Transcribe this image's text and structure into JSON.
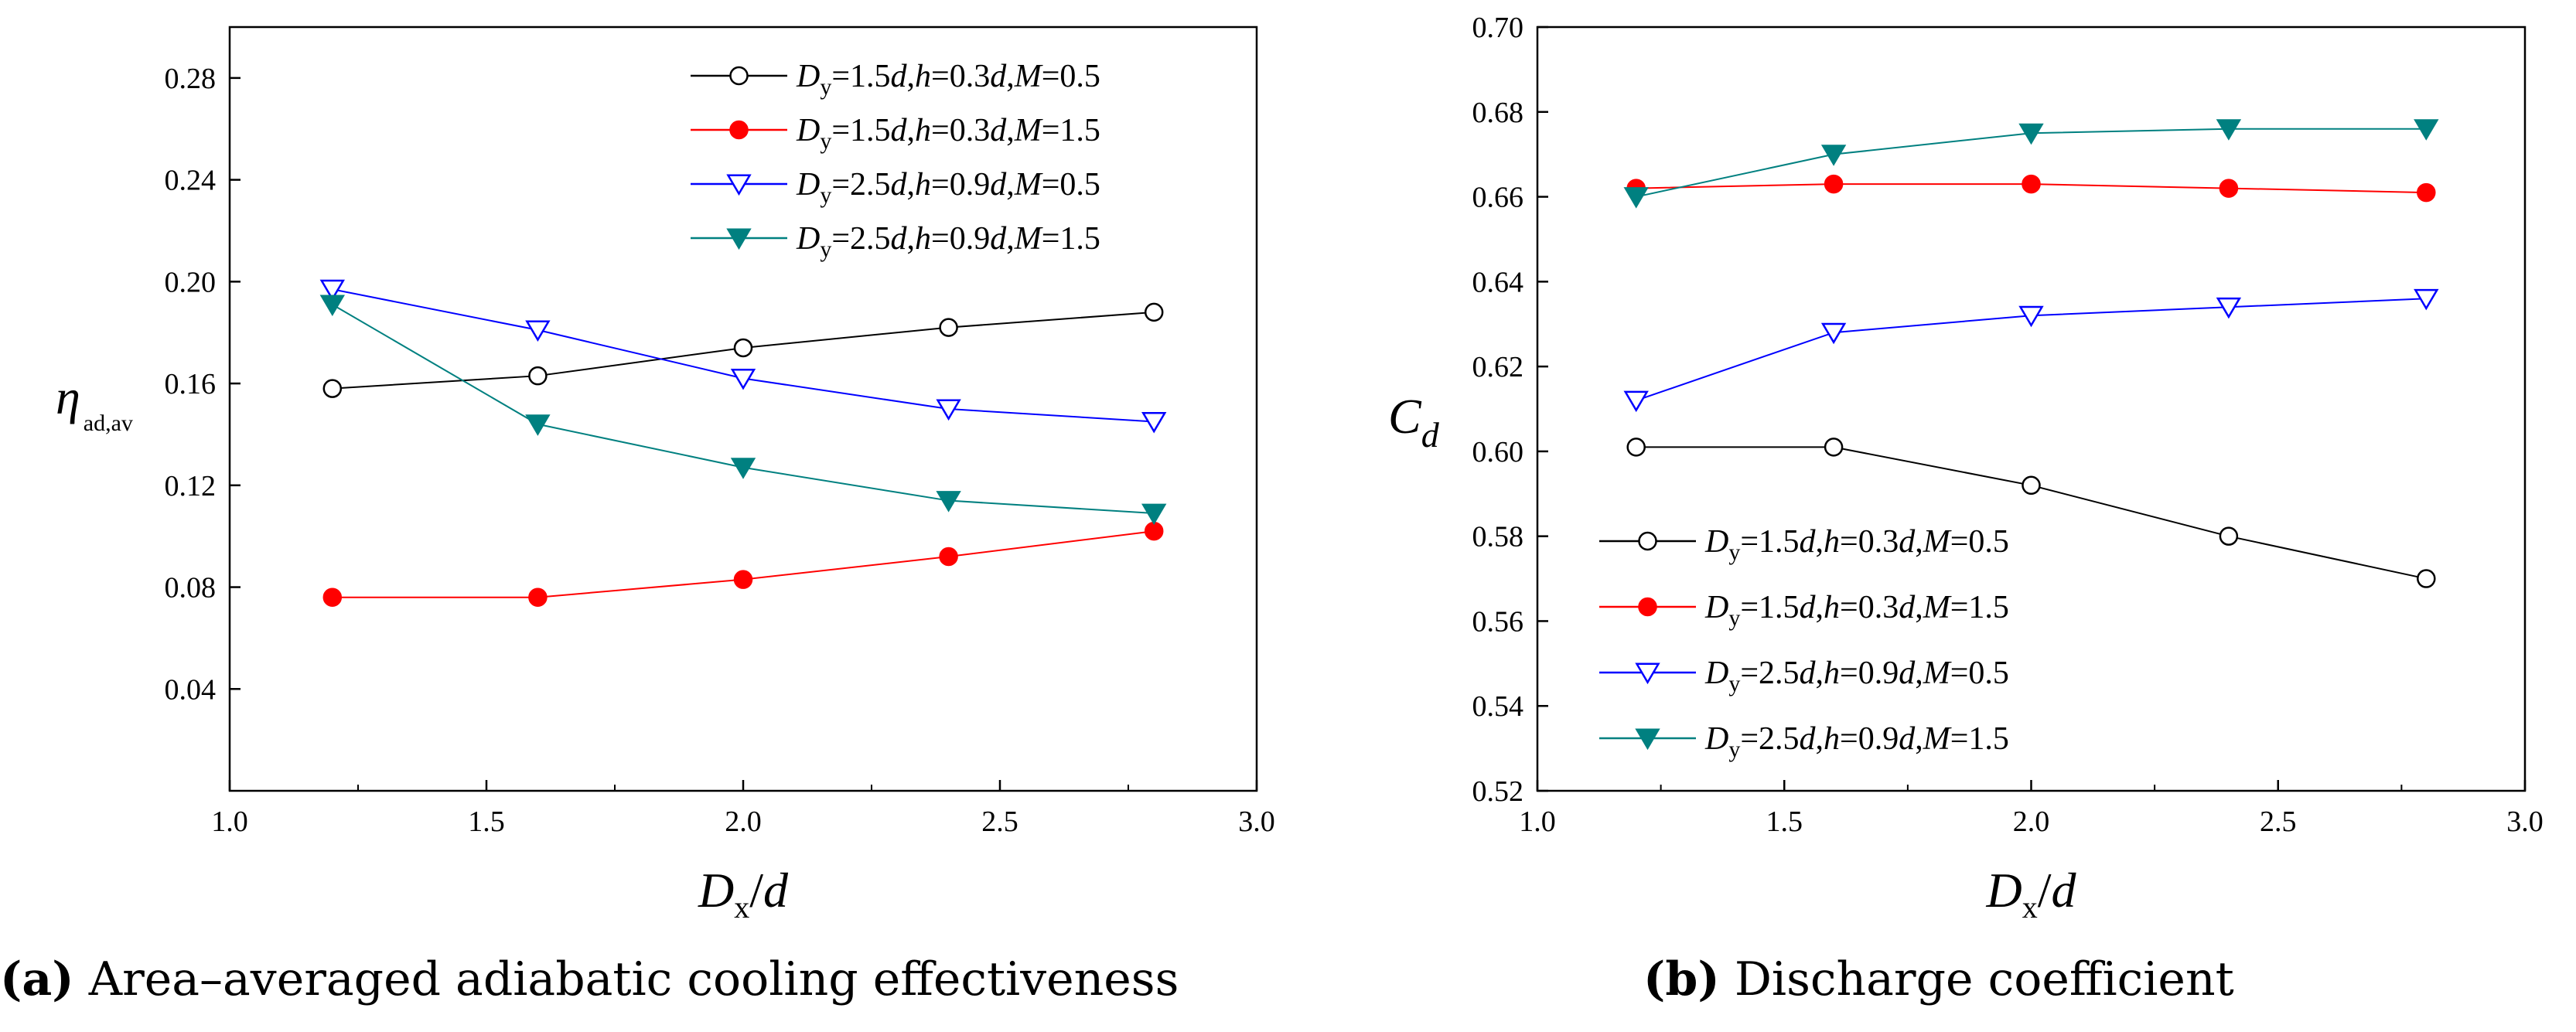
{
  "chart_data": [
    {
      "type": "line",
      "id": "a",
      "title": "",
      "xlabel": "Dx/d",
      "ylabel": "η ad,av",
      "xlim": [
        1.0,
        3.0
      ],
      "ylim": [
        0.0,
        0.3
      ],
      "xticks": [
        "1.0",
        "1.5",
        "2.0",
        "2.5",
        "3.0"
      ],
      "yticks": [
        "0.04",
        "0.08",
        "0.12",
        "0.16",
        "0.20",
        "0.24",
        "0.28"
      ],
      "x": [
        1.2,
        1.6,
        2.0,
        2.4,
        2.8
      ],
      "legend_position": "top-right",
      "series": [
        {
          "name": "Dy=1.5d,h=0.3d,M=0.5",
          "color": "#000000",
          "marker": "circle-open",
          "values": [
            0.158,
            0.163,
            0.174,
            0.182,
            0.188
          ]
        },
        {
          "name": "Dy=1.5d,h=0.3d,M=1.5",
          "color": "#ff0000",
          "marker": "circle-filled",
          "values": [
            0.076,
            0.076,
            0.083,
            0.092,
            0.102
          ]
        },
        {
          "name": "Dy=2.5d,h=0.9d,M=0.5",
          "color": "#0000ff",
          "marker": "triangle-down-open",
          "values": [
            0.197,
            0.181,
            0.162,
            0.15,
            0.145
          ]
        },
        {
          "name": "Dy=2.5d,h=0.9d,M=1.5",
          "color": "#008080",
          "marker": "triangle-down-filled",
          "values": [
            0.191,
            0.144,
            0.127,
            0.114,
            0.109
          ]
        }
      ]
    },
    {
      "type": "line",
      "id": "b",
      "title": "",
      "xlabel": "Dx/d",
      "ylabel": "Cd",
      "xlim": [
        1.0,
        3.0
      ],
      "ylim": [
        0.52,
        0.7
      ],
      "xticks": [
        "1.0",
        "1.5",
        "2.0",
        "2.5",
        "3.0"
      ],
      "yticks": [
        "0.52",
        "0.54",
        "0.56",
        "0.58",
        "0.60",
        "0.62",
        "0.64",
        "0.66",
        "0.68",
        "0.70"
      ],
      "x": [
        1.2,
        1.6,
        2.0,
        2.4,
        2.8
      ],
      "legend_position": "bottom-left",
      "series": [
        {
          "name": "Dy=1.5d,h=0.3d,M=0.5",
          "color": "#000000",
          "marker": "circle-open",
          "values": [
            0.601,
            0.601,
            0.592,
            0.58,
            0.57
          ]
        },
        {
          "name": "Dy=1.5d,h=0.3d,M=1.5",
          "color": "#ff0000",
          "marker": "circle-filled",
          "values": [
            0.662,
            0.663,
            0.663,
            0.662,
            0.661
          ]
        },
        {
          "name": "Dy=2.5d,h=0.9d,M=0.5",
          "color": "#0000ff",
          "marker": "triangle-down-open",
          "values": [
            0.612,
            0.628,
            0.632,
            0.634,
            0.636
          ]
        },
        {
          "name": "Dy=2.5d,h=0.9d,M=1.5",
          "color": "#008080",
          "marker": "triangle-down-filled",
          "values": [
            0.66,
            0.67,
            0.675,
            0.676,
            0.676
          ]
        }
      ]
    }
  ],
  "captions": {
    "a": {
      "label": "(a)",
      "text": "Area–averaged adiabatic cooling effectiveness"
    },
    "b": {
      "label": "(b)",
      "text": "Discharge coefficient"
    }
  }
}
